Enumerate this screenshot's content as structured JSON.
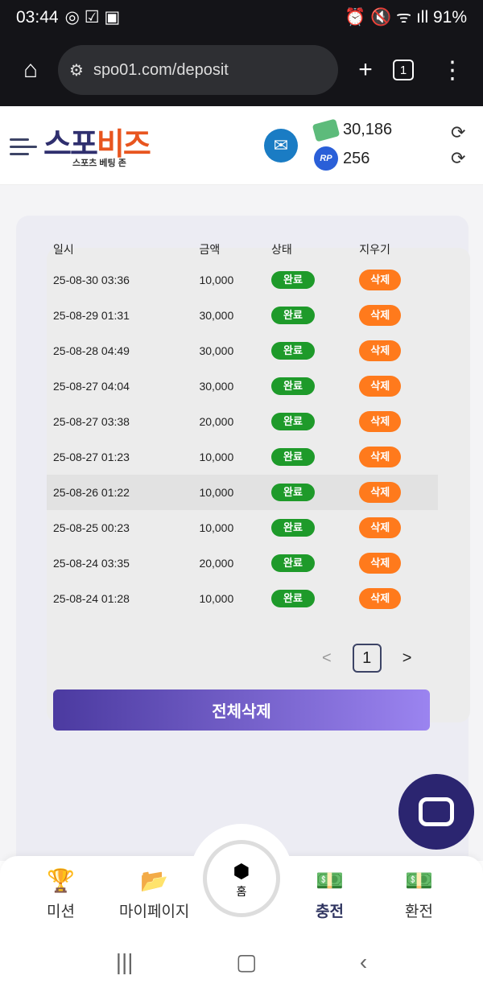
{
  "status": {
    "time": "03:44",
    "battery": "91%"
  },
  "browser": {
    "url": "spo01.com/deposit",
    "tab_count": "1"
  },
  "header": {
    "logo_a": "스포",
    "logo_b": "비즈",
    "logo_sub": "스포츠 베팅 존",
    "money": "30,186",
    "rp_label": "RP",
    "rp": "256"
  },
  "table": {
    "headers": [
      "일시",
      "금액",
      "상태",
      "지우기"
    ],
    "rows": [
      {
        "date": "25-08-30 03:36",
        "amount": "10,000",
        "status": "완료",
        "action": "삭제"
      },
      {
        "date": "25-08-29 01:31",
        "amount": "30,000",
        "status": "완료",
        "action": "삭제"
      },
      {
        "date": "25-08-28 04:49",
        "amount": "30,000",
        "status": "완료",
        "action": "삭제"
      },
      {
        "date": "25-08-27 04:04",
        "amount": "30,000",
        "status": "완료",
        "action": "삭제"
      },
      {
        "date": "25-08-27 03:38",
        "amount": "20,000",
        "status": "완료",
        "action": "삭제"
      },
      {
        "date": "25-08-27 01:23",
        "amount": "10,000",
        "status": "완료",
        "action": "삭제"
      },
      {
        "date": "25-08-26 01:22",
        "amount": "10,000",
        "status": "완료",
        "action": "삭제"
      },
      {
        "date": "25-08-25 00:23",
        "amount": "10,000",
        "status": "완료",
        "action": "삭제"
      },
      {
        "date": "25-08-24 03:35",
        "amount": "20,000",
        "status": "완료",
        "action": "삭제"
      },
      {
        "date": "25-08-24 01:28",
        "amount": "10,000",
        "status": "완료",
        "action": "삭제"
      }
    ]
  },
  "pager": {
    "prev": "<",
    "page": "1",
    "next": ">"
  },
  "delete_all": "전체삭제",
  "nav": {
    "mission": "미션",
    "mypage": "마이페이지",
    "home": "홈",
    "deposit": "충전",
    "withdraw": "환전"
  },
  "colors": {
    "green": "#1e9a2a",
    "orange": "#ff7a1c",
    "accent": "#2b2570"
  }
}
